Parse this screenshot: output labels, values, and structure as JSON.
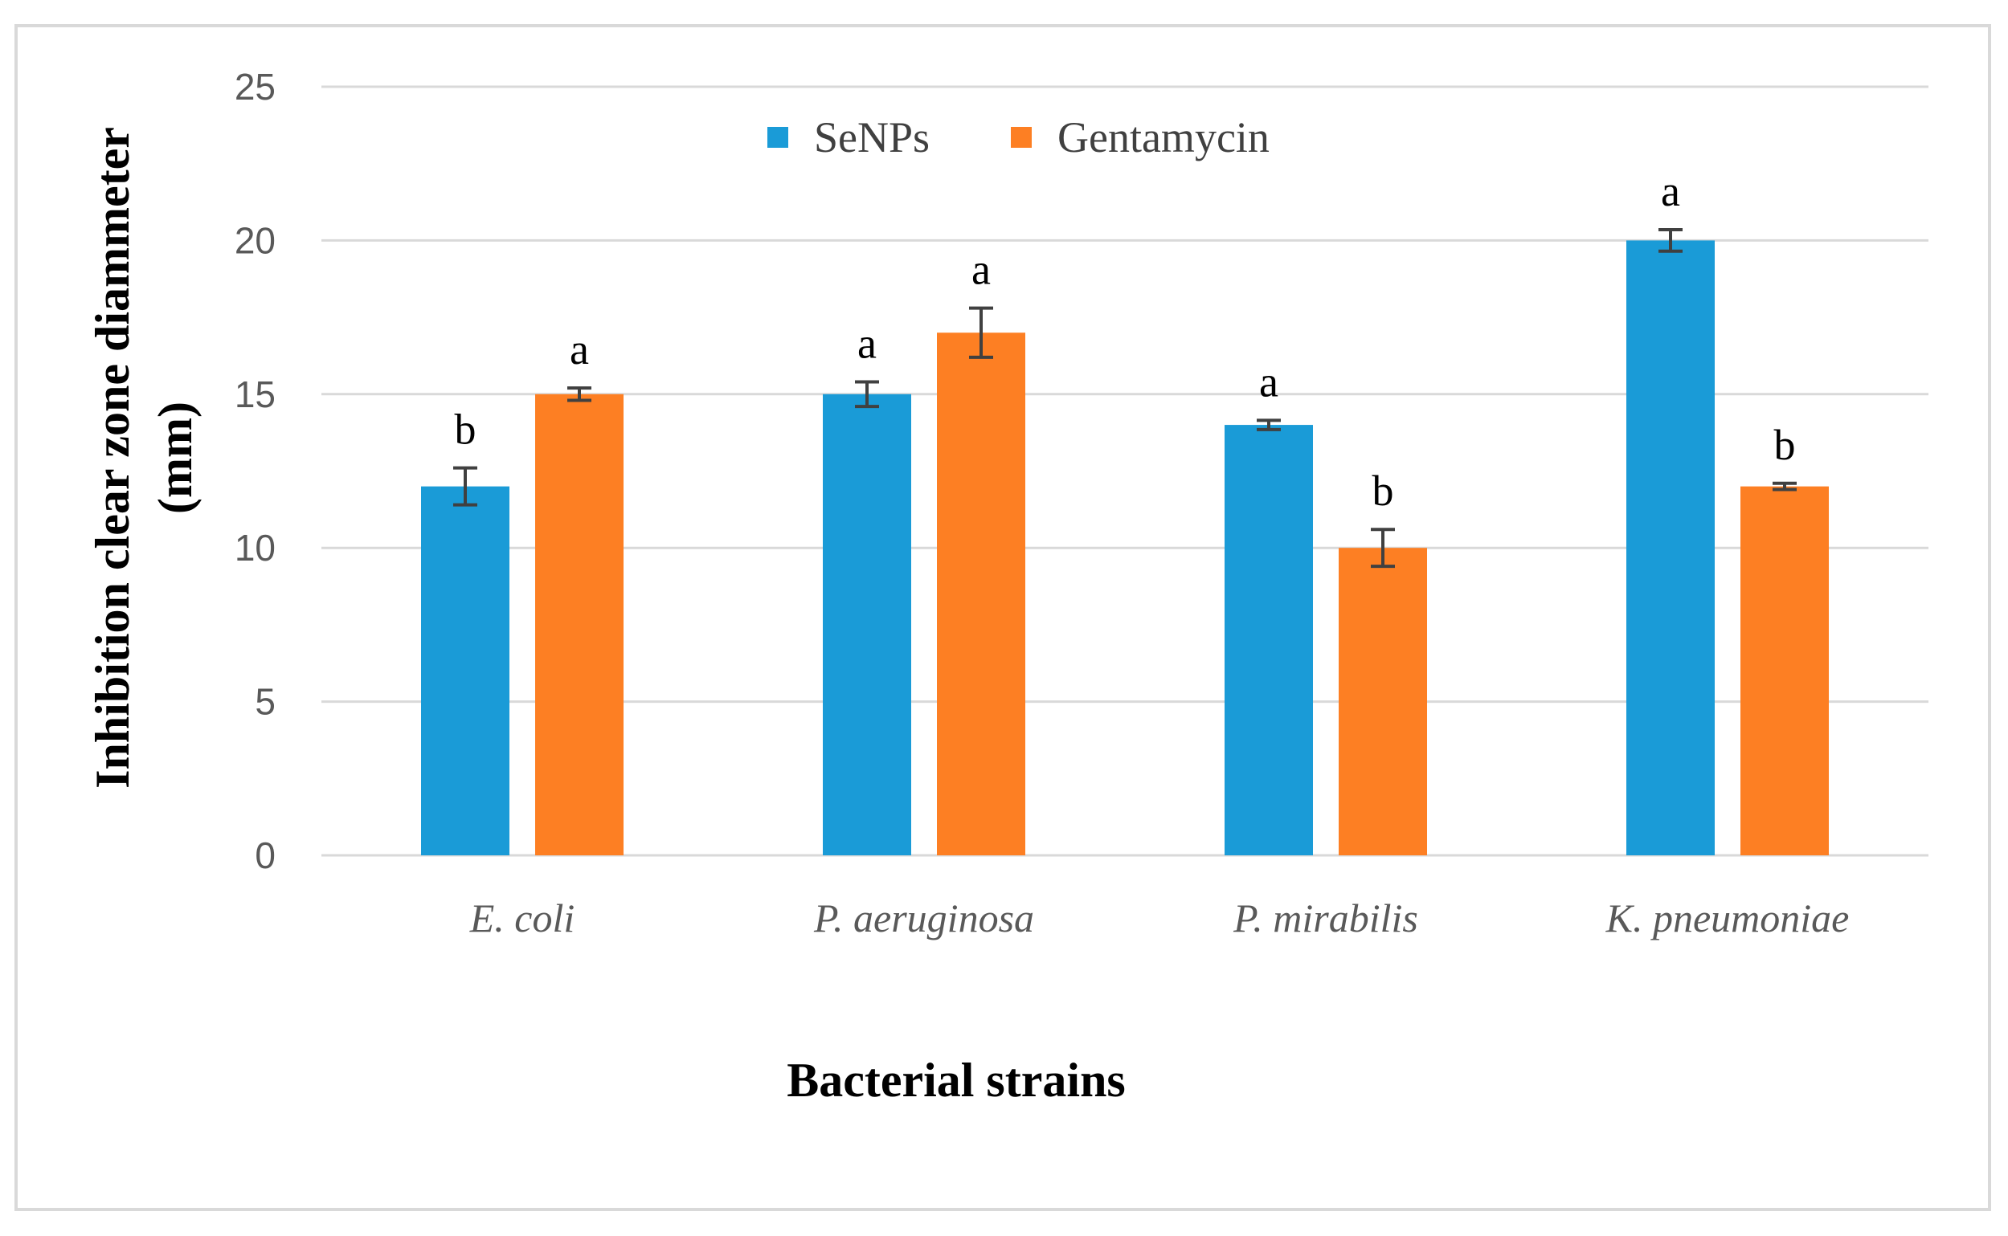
{
  "chart_data": {
    "type": "bar",
    "title": "",
    "xlabel": "Bacterial strains",
    "ylabel_line1": "Inhibition  clear zone diammeter",
    "ylabel_line2": "(mm)",
    "categories": [
      "E. coli",
      "P. aeruginosa",
      "P. mirabilis",
      "K. pneumoniae"
    ],
    "ylim": [
      0,
      25
    ],
    "yticks": [
      0,
      5,
      10,
      15,
      20,
      25
    ],
    "grid": true,
    "legend_position": "top-center",
    "series": [
      {
        "name": "SeNPs",
        "color": "#1a9bd7",
        "values": [
          12,
          15,
          14,
          20
        ],
        "errors": [
          0.6,
          0.4,
          0.15,
          0.35
        ],
        "labels": [
          "b",
          "a",
          "a",
          "a"
        ]
      },
      {
        "name": "Gentamycin",
        "color": "#fd7f23",
        "values": [
          15,
          17,
          10,
          12
        ],
        "errors": [
          0.2,
          0.8,
          0.6,
          0.1
        ],
        "labels": [
          "a",
          "a",
          "b",
          "b"
        ]
      }
    ]
  }
}
